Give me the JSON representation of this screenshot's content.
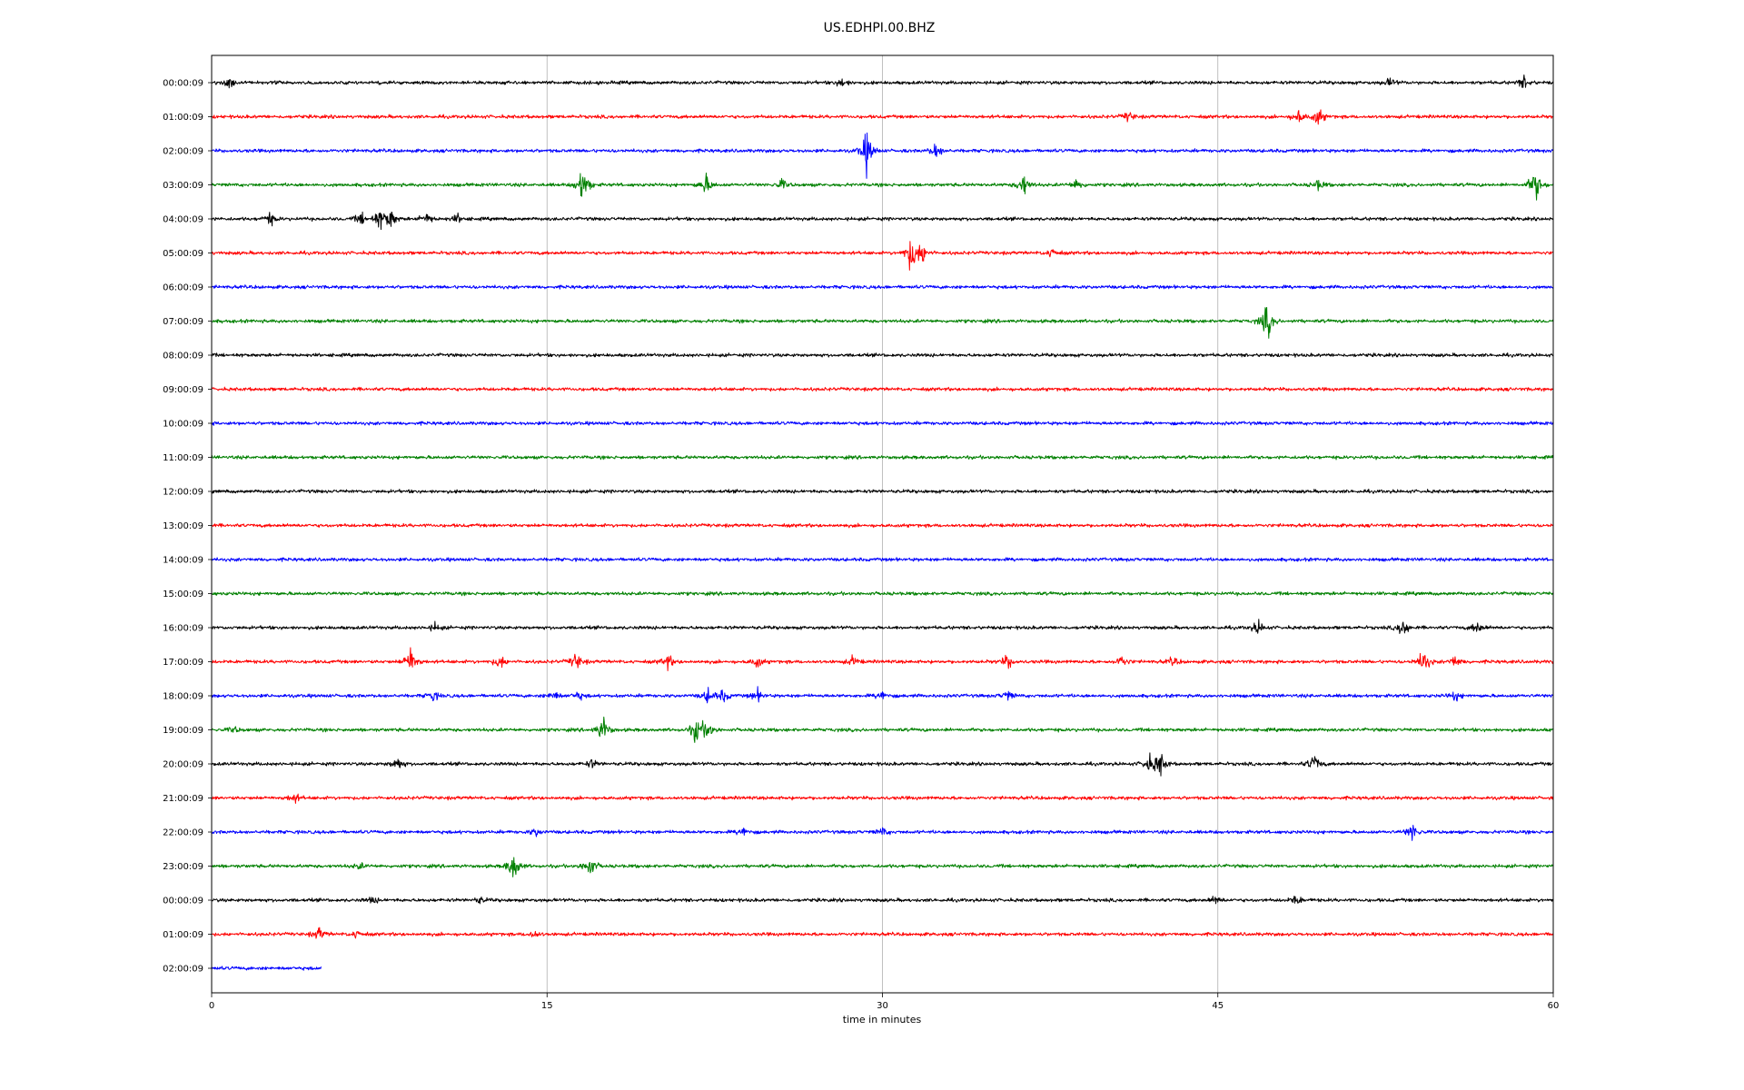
{
  "chart_data": {
    "type": "line",
    "title": "US.EDHPI.00.BHZ",
    "xlabel": "time in minutes",
    "ylabel": "",
    "xlim": [
      0,
      60
    ],
    "x_ticks": [
      {
        "value": 0,
        "label": "0"
      },
      {
        "value": 15,
        "label": "15"
      },
      {
        "value": 30,
        "label": "30"
      },
      {
        "value": 45,
        "label": "45"
      },
      {
        "value": 60,
        "label": "60"
      }
    ],
    "grid": "vertical",
    "colors": [
      "#000000",
      "#ff0000",
      "#0000ff",
      "#008000"
    ],
    "series": [
      {
        "label": "00:00:09",
        "color": "#000000",
        "end_minute": 60,
        "events": [
          {
            "t": 0.8,
            "amp": 0.5
          },
          {
            "t": 28.2,
            "amp": 0.5
          },
          {
            "t": 52.7,
            "amp": 0.4
          },
          {
            "t": 58.7,
            "amp": 0.6
          }
        ]
      },
      {
        "label": "01:00:09",
        "color": "#ff0000",
        "end_minute": 60,
        "events": [
          {
            "t": 41.0,
            "amp": 0.5
          },
          {
            "t": 48.6,
            "amp": 0.7
          },
          {
            "t": 49.5,
            "amp": 0.9
          }
        ]
      },
      {
        "label": "02:00:09",
        "color": "#0000ff",
        "end_minute": 60,
        "events": [
          {
            "t": 29.3,
            "amp": 2.0
          },
          {
            "t": 32.4,
            "amp": 0.8
          }
        ]
      },
      {
        "label": "03:00:09",
        "color": "#008000",
        "end_minute": 60,
        "events": [
          {
            "t": 16.6,
            "amp": 2.0
          },
          {
            "t": 22.1,
            "amp": 1.0
          },
          {
            "t": 25.5,
            "amp": 0.5
          },
          {
            "t": 36.3,
            "amp": 1.2
          },
          {
            "t": 38.7,
            "amp": 0.6
          },
          {
            "t": 49.5,
            "amp": 0.5
          },
          {
            "t": 59.2,
            "amp": 1.7
          }
        ]
      },
      {
        "label": "04:00:09",
        "color": "#000000",
        "end_minute": 60,
        "events": [
          {
            "t": 2.6,
            "amp": 0.6
          },
          {
            "t": 6.7,
            "amp": 0.6
          },
          {
            "t": 7.5,
            "amp": 1.0
          },
          {
            "t": 8.0,
            "amp": 1.0
          },
          {
            "t": 9.6,
            "amp": 0.6
          },
          {
            "t": 11.0,
            "amp": 0.4
          }
        ]
      },
      {
        "label": "05:00:09",
        "color": "#ff0000",
        "end_minute": 60,
        "events": [
          {
            "t": 31.3,
            "amp": 2.0
          },
          {
            "t": 31.8,
            "amp": 1.0
          },
          {
            "t": 37.6,
            "amp": 0.5
          }
        ]
      },
      {
        "label": "06:00:09",
        "color": "#0000ff",
        "end_minute": 60,
        "events": []
      },
      {
        "label": "07:00:09",
        "color": "#008000",
        "end_minute": 60,
        "events": [
          {
            "t": 47.2,
            "amp": 1.8
          }
        ]
      },
      {
        "label": "08:00:09",
        "color": "#000000",
        "end_minute": 60,
        "events": []
      },
      {
        "label": "09:00:09",
        "color": "#ff0000",
        "end_minute": 60,
        "events": []
      },
      {
        "label": "10:00:09",
        "color": "#0000ff",
        "end_minute": 60,
        "events": []
      },
      {
        "label": "11:00:09",
        "color": "#008000",
        "end_minute": 60,
        "events": []
      },
      {
        "label": "12:00:09",
        "color": "#000000",
        "end_minute": 60,
        "events": []
      },
      {
        "label": "13:00:09",
        "color": "#ff0000",
        "end_minute": 60,
        "events": []
      },
      {
        "label": "14:00:09",
        "color": "#0000ff",
        "end_minute": 60,
        "events": []
      },
      {
        "label": "15:00:09",
        "color": "#008000",
        "end_minute": 60,
        "events": []
      },
      {
        "label": "16:00:09",
        "color": "#000000",
        "end_minute": 60,
        "events": [
          {
            "t": 10.0,
            "amp": 0.4
          },
          {
            "t": 46.8,
            "amp": 0.7
          },
          {
            "t": 53.3,
            "amp": 1.0
          },
          {
            "t": 56.6,
            "amp": 0.6
          }
        ]
      },
      {
        "label": "17:00:09",
        "color": "#ff0000",
        "end_minute": 60,
        "events": [
          {
            "t": 8.9,
            "amp": 1.5
          },
          {
            "t": 12.9,
            "amp": 0.7
          },
          {
            "t": 16.3,
            "amp": 0.9
          },
          {
            "t": 20.4,
            "amp": 0.7
          },
          {
            "t": 24.4,
            "amp": 0.6
          },
          {
            "t": 28.7,
            "amp": 0.5
          },
          {
            "t": 35.6,
            "amp": 0.7
          },
          {
            "t": 40.7,
            "amp": 0.6
          },
          {
            "t": 43.0,
            "amp": 0.4
          },
          {
            "t": 54.2,
            "amp": 1.3
          },
          {
            "t": 55.6,
            "amp": 0.6
          }
        ]
      },
      {
        "label": "18:00:09",
        "color": "#0000ff",
        "end_minute": 60,
        "events": [
          {
            "t": 16.4,
            "amp": 0.4
          },
          {
            "t": 15.3,
            "amp": 0.5
          },
          {
            "t": 9.9,
            "amp": 0.5
          },
          {
            "t": 22.2,
            "amp": 0.7
          },
          {
            "t": 22.9,
            "amp": 0.6
          },
          {
            "t": 30.0,
            "amp": 0.5
          },
          {
            "t": 24.4,
            "amp": 0.6
          },
          {
            "t": 35.6,
            "amp": 0.5
          },
          {
            "t": 55.6,
            "amp": 0.5
          }
        ]
      },
      {
        "label": "19:00:09",
        "color": "#008000",
        "end_minute": 60,
        "events": [
          {
            "t": 1.0,
            "amp": 0.3
          },
          {
            "t": 17.5,
            "amp": 1.4
          },
          {
            "t": 21.7,
            "amp": 1.5
          },
          {
            "t": 22.2,
            "amp": 0.8
          }
        ]
      },
      {
        "label": "20:00:09",
        "color": "#000000",
        "end_minute": 60,
        "events": [
          {
            "t": 8.3,
            "amp": 0.7
          },
          {
            "t": 17.0,
            "amp": 0.4
          },
          {
            "t": 41.9,
            "amp": 0.8
          },
          {
            "t": 42.4,
            "amp": 1.3
          },
          {
            "t": 49.3,
            "amp": 1.0
          }
        ]
      },
      {
        "label": "21:00:09",
        "color": "#ff0000",
        "end_minute": 60,
        "events": [
          {
            "t": 3.7,
            "amp": 0.5
          }
        ]
      },
      {
        "label": "22:00:09",
        "color": "#0000ff",
        "end_minute": 60,
        "events": [
          {
            "t": 14.5,
            "amp": 0.4
          },
          {
            "t": 23.8,
            "amp": 0.5
          },
          {
            "t": 30.0,
            "amp": 0.4
          },
          {
            "t": 53.7,
            "amp": 0.9
          }
        ]
      },
      {
        "label": "23:00:09",
        "color": "#008000",
        "end_minute": 60,
        "events": [
          {
            "t": 13.5,
            "amp": 1.6
          },
          {
            "t": 16.9,
            "amp": 1.2
          },
          {
            "t": 6.6,
            "amp": 0.3
          }
        ]
      },
      {
        "label": "00:00:09",
        "color": "#000000",
        "end_minute": 60,
        "events": [
          {
            "t": 7.2,
            "amp": 0.3
          },
          {
            "t": 12.0,
            "amp": 0.3
          },
          {
            "t": 44.9,
            "amp": 0.4
          },
          {
            "t": 48.5,
            "amp": 0.5
          }
        ]
      },
      {
        "label": "01:00:09",
        "color": "#ff0000",
        "end_minute": 60,
        "events": [
          {
            "t": 4.8,
            "amp": 0.6
          },
          {
            "t": 6.5,
            "amp": 0.4
          },
          {
            "t": 14.4,
            "amp": 0.4
          }
        ]
      },
      {
        "label": "02:00:09",
        "color": "#0000ff",
        "end_minute": 4.9,
        "events": []
      }
    ]
  }
}
